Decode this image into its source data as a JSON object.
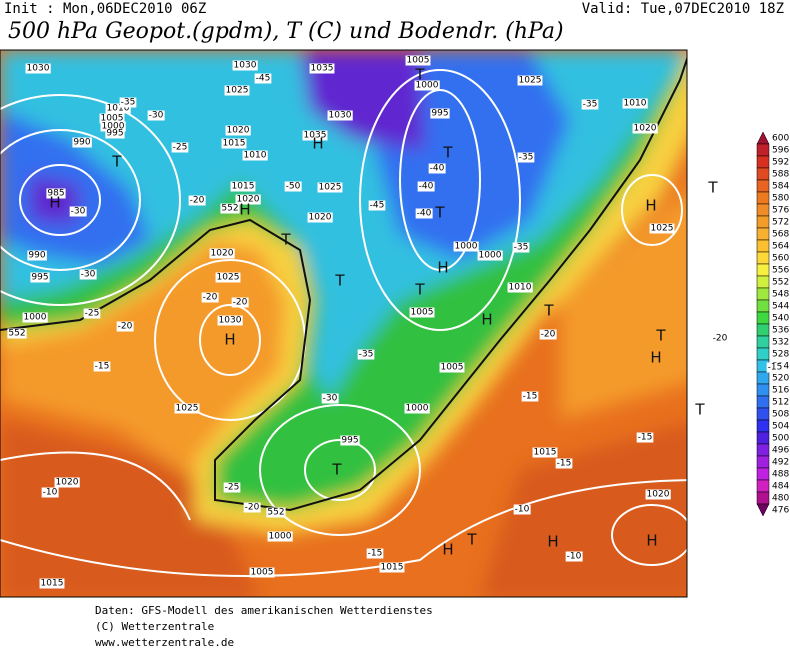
{
  "header": {
    "init": "Init : Mon,06DEC2010 06Z",
    "valid": "Valid: Tue,07DEC2010 18Z",
    "title": "500 hPa Geopot.(gpdm), T (C) und Bodendr. (hPa)"
  },
  "legend": {
    "values": [
      600,
      596,
      592,
      588,
      584,
      580,
      576,
      572,
      568,
      564,
      560,
      556,
      552,
      548,
      544,
      540,
      536,
      532,
      528,
      524,
      520,
      516,
      512,
      508,
      504,
      500,
      496,
      492,
      488,
      484,
      480,
      476
    ],
    "colors": [
      "#a01030",
      "#c0202a",
      "#d83020",
      "#e04a20",
      "#e86420",
      "#ee7a20",
      "#f08c28",
      "#f49c2a",
      "#f8b030",
      "#fcc030",
      "#fcd838",
      "#f8f040",
      "#d0f040",
      "#a0e840",
      "#70e040",
      "#40d840",
      "#30d070",
      "#30d0a0",
      "#30d0c8",
      "#30c0e8",
      "#30a8f0",
      "#3090f0",
      "#3070f0",
      "#3050f0",
      "#3030f0",
      "#5020e0",
      "#8020e0",
      "#a020e0",
      "#c020e0",
      "#d020c0",
      "#b01090",
      "#700060"
    ]
  },
  "map": {
    "isobar_labels": [
      "1030",
      "1030",
      "1035",
      "1025",
      "1010",
      "1005",
      "1000",
      "995",
      "990",
      "1020",
      "1015",
      "1010",
      "1015",
      "1020",
      "1020",
      "1025",
      "1035",
      "1030",
      "995",
      "1000",
      "1005",
      "1025",
      "1010",
      "1020",
      "1025",
      "985",
      "990",
      "995",
      "1000",
      "1020",
      "1025",
      "1030",
      "1005",
      "1005",
      "1000",
      "1000",
      "1010",
      "1000",
      "995",
      "1025",
      "1020",
      "1015",
      "1000",
      "1005",
      "1015",
      "1015",
      "1020"
    ],
    "temperature_labels": [
      "-35",
      "-30",
      "-25",
      "-30",
      "-20",
      "-25",
      "-30",
      "-20",
      "-20",
      "-20",
      "-15",
      "-35",
      "-30",
      "-25",
      "-20",
      "-10",
      "-15",
      "-10",
      "-20",
      "-15",
      "-15",
      "-15",
      "-10",
      "-35",
      "-35",
      "-35",
      "-40",
      "-40",
      "-45",
      "-40",
      "-45",
      "-20",
      "-15",
      "-50"
    ],
    "pressure_centers": [
      "T",
      "H",
      "H",
      "T",
      "T",
      "T",
      "H",
      "T",
      "T",
      "H",
      "T",
      "H",
      "T",
      "H",
      "T",
      "H",
      "T",
      "T",
      "H",
      "T",
      "H",
      "T",
      "H",
      "H"
    ],
    "contour_labels": [
      "552",
      "552",
      "552"
    ]
  },
  "footer": [
    "Daten: GFS-Modell des amerikanischen Wetterdienstes",
    "(C) Wetterzentrale",
    "www.wetterzentrale.de"
  ]
}
